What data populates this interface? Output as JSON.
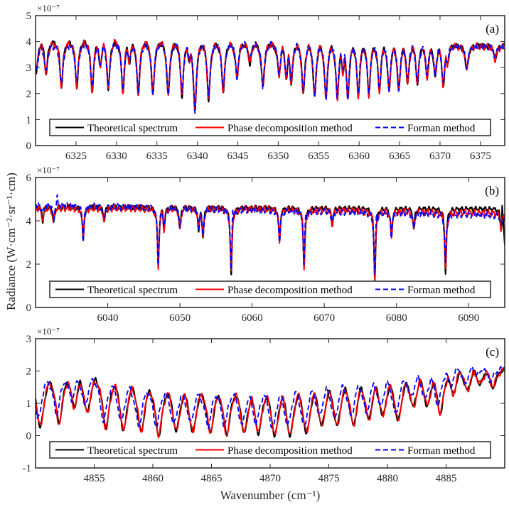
{
  "figure": {
    "xlabel": "Wavenumber (cm⁻¹)",
    "ylabel": "Radiance (W·cm⁻²·sr⁻¹·cm)"
  },
  "legend_labels": [
    "Theoretical spectrum",
    "Phase decomposition method",
    "Forman method"
  ],
  "colors": {
    "theoretical": "#000000",
    "phase": "#ff0000",
    "forman": "#0000ff"
  },
  "chart_data": [
    {
      "type": "line",
      "panel_label": "(a)",
      "y_exponent": "×10⁻⁷",
      "xlim": [
        6320,
        6378
      ],
      "ylim": [
        0,
        5
      ],
      "xticks": [
        6325,
        6330,
        6335,
        6340,
        6345,
        6350,
        6355,
        6360,
        6365,
        6370,
        6375
      ],
      "yticks": [
        0,
        1,
        2,
        3,
        4,
        5
      ],
      "legend": "bottom",
      "line_width": 0.22,
      "series": [
        {
          "name": "Theoretical spectrum",
          "style": "solid",
          "continuum": [
            [
              6320,
              4.05
            ],
            [
              6330,
              4.05
            ],
            [
              6345,
              3.95
            ],
            [
              6360,
              3.95
            ],
            [
              6378,
              3.85
            ]
          ]
        },
        {
          "name": "Phase decomposition method",
          "style": "solid",
          "continuum": [
            [
              6320,
              3.95
            ],
            [
              6330,
              4.1
            ],
            [
              6345,
              3.95
            ],
            [
              6360,
              3.95
            ],
            [
              6378,
              3.8
            ]
          ]
        },
        {
          "name": "Forman method",
          "style": "dashed",
          "continuum": [
            [
              6320,
              3.85
            ],
            [
              6330,
              4.0
            ],
            [
              6345,
              3.95
            ],
            [
              6360,
              3.95
            ],
            [
              6378,
              3.8
            ]
          ]
        }
      ],
      "absorption_minima": [
        [
          6320.1,
          2.8
        ],
        [
          6321.3,
          2.75
        ],
        [
          6323.2,
          2.25
        ],
        [
          6325.1,
          2.25
        ],
        [
          6327.0,
          2.1
        ],
        [
          6328.0,
          3.0
        ],
        [
          6329.0,
          2.2
        ],
        [
          6330.8,
          2.05
        ],
        [
          6331.6,
          3.2
        ],
        [
          6332.7,
          1.95
        ],
        [
          6334.5,
          1.95
        ],
        [
          6336.4,
          1.9
        ],
        [
          6338.1,
          1.9
        ],
        [
          6339.0,
          3.2
        ],
        [
          6339.7,
          1.3
        ],
        [
          6341.4,
          1.75
        ],
        [
          6343.2,
          2.1
        ],
        [
          6344.9,
          2.6
        ],
        [
          6346.5,
          3.15
        ],
        [
          6348.1,
          2.25
        ],
        [
          6350.1,
          2.7
        ],
        [
          6351.0,
          2.6
        ],
        [
          6351.6,
          2.4
        ],
        [
          6353.1,
          2.0
        ],
        [
          6354.5,
          1.85
        ],
        [
          6355.9,
          1.8
        ],
        [
          6357.3,
          1.8
        ],
        [
          6358.0,
          2.8
        ],
        [
          6358.6,
          1.8
        ],
        [
          6359.9,
          1.9
        ],
        [
          6361.2,
          1.95
        ],
        [
          6362.5,
          2.1
        ],
        [
          6363.7,
          2.1
        ],
        [
          6364.9,
          2.1
        ],
        [
          6366.0,
          2.4
        ],
        [
          6367.2,
          2.4
        ],
        [
          6368.4,
          2.6
        ],
        [
          6369.4,
          2.65
        ],
        [
          6370.4,
          2.3
        ],
        [
          6370.9,
          3.1
        ],
        [
          6373.3,
          2.9
        ],
        [
          6376.8,
          3.3
        ]
      ]
    },
    {
      "type": "line",
      "panel_label": "(b)",
      "y_exponent": "×10⁻⁷",
      "xlim": [
        6030,
        6095
      ],
      "ylim": [
        0,
        6
      ],
      "xticks": [
        6040,
        6050,
        6060,
        6070,
        6080,
        6090
      ],
      "yticks": [
        0,
        2,
        4,
        6
      ],
      "legend": "bottom",
      "line_width": 0.14,
      "series": [
        {
          "name": "Theoretical spectrum",
          "style": "solid",
          "continuum": [
            [
              6030,
              4.65
            ],
            [
              6060,
              4.6
            ],
            [
              6095,
              4.55
            ]
          ]
        },
        {
          "name": "Phase decomposition method",
          "style": "solid",
          "continuum": [
            [
              6030,
              4.6
            ],
            [
              6060,
              4.55
            ],
            [
              6095,
              4.35
            ]
          ]
        },
        {
          "name": "Forman method",
          "style": "dashed",
          "continuum": [
            [
              6030,
              4.75
            ],
            [
              6060,
              4.5
            ],
            [
              6095,
              4.25
            ]
          ],
          "spikes": [
            [
              6057.3,
              5.4
            ],
            [
              6067.4,
              5.0
            ],
            [
              6077.2,
              5.15
            ],
            [
              6086.9,
              4.9
            ],
            [
              6031.0,
              5.1
            ],
            [
              6033.0,
              5.1
            ]
          ]
        }
      ],
      "absorption_minima": [
        [
          6031.0,
          4.0
        ],
        [
          6032.5,
          3.9
        ],
        [
          6036.6,
          3.1
        ],
        [
          6039.5,
          4.0
        ],
        [
          6047.0,
          1.9
        ],
        [
          6047.8,
          3.6
        ],
        [
          6050.0,
          3.6
        ],
        [
          6052.6,
          3.5
        ],
        [
          6053.2,
          3.2
        ],
        [
          6057.1,
          1.5
        ],
        [
          6063.8,
          3.05
        ],
        [
          6067.2,
          1.85
        ],
        [
          6071.1,
          3.8
        ],
        [
          6077.0,
          1.3
        ],
        [
          6079.3,
          3.2
        ],
        [
          6082.4,
          3.6
        ],
        [
          6086.8,
          1.65
        ],
        [
          6094.5,
          3.6
        ]
      ]
    },
    {
      "type": "line",
      "panel_label": "(c)",
      "y_exponent": "×10⁻⁷",
      "xlim": [
        4850,
        4890
      ],
      "ylim": [
        -1,
        3
      ],
      "xticks": [
        4855,
        4860,
        4865,
        4870,
        4875,
        4880,
        4885
      ],
      "yticks": [
        -1,
        0,
        1,
        2,
        3
      ],
      "legend": "bottom",
      "line_width": 0.38,
      "series": [
        {
          "name": "Theoretical spectrum",
          "style": "solid",
          "continuum": [
            [
              4850,
              1.9
            ],
            [
              4854,
              2.1
            ],
            [
              4856,
              1.95
            ],
            [
              4862,
              1.6
            ],
            [
              4870,
              1.55
            ],
            [
              4876,
              1.75
            ],
            [
              4882,
              1.95
            ],
            [
              4886,
              2.2
            ],
            [
              4890,
              2.15
            ]
          ]
        },
        {
          "name": "Phase decomposition method",
          "style": "solid",
          "continuum": [
            [
              4850,
              1.9
            ],
            [
              4854,
              2.05
            ],
            [
              4856,
              1.95
            ],
            [
              4862,
              1.6
            ],
            [
              4870,
              1.55
            ],
            [
              4876,
              1.75
            ],
            [
              4882,
              1.95
            ],
            [
              4886,
              2.25
            ],
            [
              4890,
              2.1
            ]
          ]
        },
        {
          "name": "Forman method",
          "style": "dashed",
          "continuum": [
            [
              4850,
              1.85
            ],
            [
              4854,
              2.05
            ],
            [
              4856,
              1.85
            ],
            [
              4862,
              1.5
            ],
            [
              4870,
              1.55
            ],
            [
              4876,
              1.8
            ],
            [
              4882,
              2.0
            ],
            [
              4886,
              2.3
            ],
            [
              4890,
              2.1
            ]
          ]
        }
      ],
      "absorption_minima": [
        [
          4850.4,
          0.25
        ],
        [
          4852.0,
          0.4
        ],
        [
          4853.3,
          0.9
        ],
        [
          4854.4,
          0.7
        ],
        [
          4856.0,
          0.25
        ],
        [
          4857.5,
          0.15
        ],
        [
          4859.0,
          0.1
        ],
        [
          4860.5,
          0.0
        ],
        [
          4862.0,
          0.15
        ],
        [
          4863.4,
          0.1
        ],
        [
          4864.9,
          0.1
        ],
        [
          4866.3,
          0.05
        ],
        [
          4867.8,
          0.1
        ],
        [
          4869.0,
          0.08
        ],
        [
          4870.4,
          0.0
        ],
        [
          4871.7,
          0.0
        ],
        [
          4873.1,
          0.05
        ],
        [
          4874.4,
          0.3
        ],
        [
          4875.7,
          0.3
        ],
        [
          4877.1,
          0.3
        ],
        [
          4878.4,
          0.5
        ],
        [
          4879.6,
          0.6
        ],
        [
          4880.9,
          0.45
        ],
        [
          4882.2,
          0.9
        ],
        [
          4883.4,
          0.9
        ],
        [
          4884.5,
          0.7
        ],
        [
          4885.6,
          1.3
        ],
        [
          4886.8,
          1.4
        ],
        [
          4887.9,
          1.6
        ],
        [
          4889.0,
          1.5
        ]
      ]
    }
  ]
}
